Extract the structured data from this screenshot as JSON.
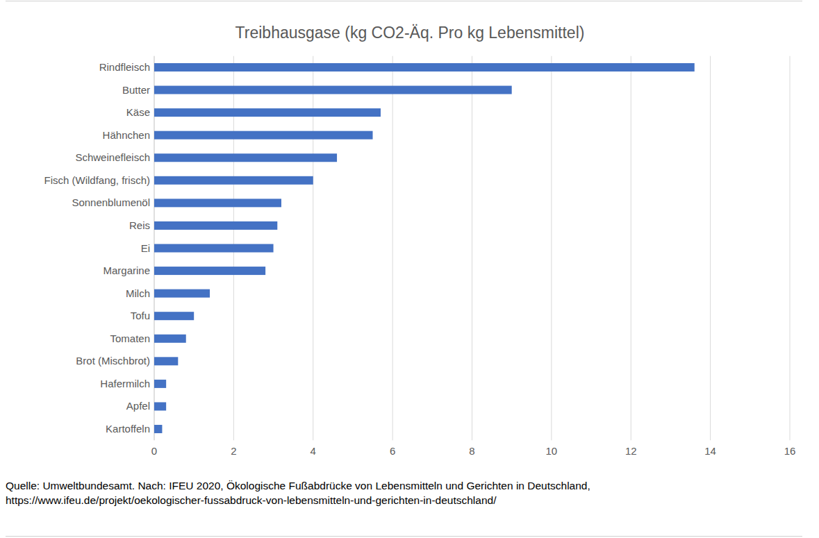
{
  "chart_data": {
    "type": "bar",
    "title": "Treibhausgase (kg CO2-Äq. Pro kg Lebensmittel)",
    "orientation": "horizontal",
    "categories": [
      "Rindfleisch",
      "Butter",
      "Käse",
      "Hähnchen",
      "Schweinefleisch",
      "Fisch (Wildfang, frisch)",
      "Sonnenblumenöl",
      "Reis",
      "Ei",
      "Margarine",
      "Milch",
      "Tofu",
      "Tomaten",
      "Brot (Mischbrot)",
      "Hafermilch",
      "Apfel",
      "Kartoffeln"
    ],
    "values": [
      13.6,
      9.0,
      5.7,
      5.5,
      4.6,
      4.0,
      3.2,
      3.1,
      3.0,
      2.8,
      1.4,
      1.0,
      0.8,
      0.6,
      0.3,
      0.3,
      0.2
    ],
    "color": "#4472c4",
    "xlim": [
      0,
      16
    ],
    "xticks": [
      0,
      2,
      4,
      6,
      8,
      10,
      12,
      14,
      16
    ],
    "grid": true,
    "annotations": [
      "Quelle: Umweltbundesamt. Nach: IFEU 2020, Ökologische Fußabdrücke von Lebensmitteln und Gerichten in Deutschland,",
      "https://www.ifeu.de/projekt/oekologischer-fussabdruck-von-lebensmitteln-und-gerichten-in-deutschland/"
    ]
  }
}
